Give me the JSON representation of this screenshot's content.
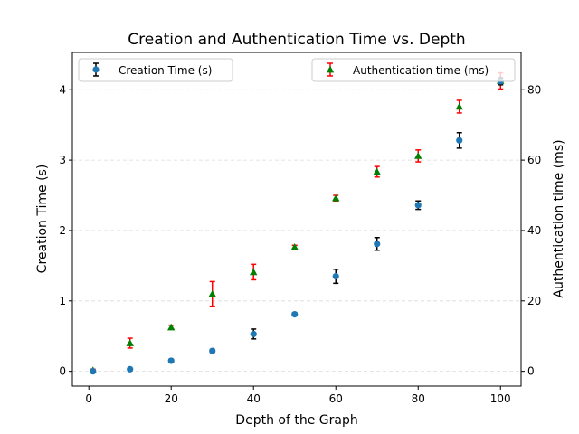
{
  "chart_data": {
    "type": "scatter",
    "title": "Creation and Authentication Time vs. Depth",
    "xlabel": "Depth of the Graph",
    "ylabel": "Creation Time (s)",
    "ylabel_right": "Authentication time (ms)",
    "xlim": [
      -4,
      105
    ],
    "ylim": [
      -0.21,
      4.53
    ],
    "ylim_right": [
      -4.2,
      90.6
    ],
    "xticks": [
      0,
      20,
      40,
      60,
      80,
      100
    ],
    "yticks": [
      0,
      1,
      2,
      3,
      4
    ],
    "yticks_right": [
      0,
      20,
      40,
      60,
      80
    ],
    "grid": "y-dashed",
    "series": [
      {
        "name": "Creation Time (s)",
        "axis": "left",
        "marker": "circle",
        "color": "#1f77b4",
        "error_color": "#000000",
        "legend_position": "upper-left",
        "x": [
          1,
          10,
          20,
          30,
          40,
          50,
          60,
          70,
          80,
          90,
          100
        ],
        "y": [
          0.0,
          0.03,
          0.15,
          0.29,
          0.53,
          0.81,
          1.35,
          1.81,
          2.36,
          3.28,
          4.12
        ],
        "err": [
          0.01,
          0.01,
          0.02,
          0.02,
          0.07,
          0.02,
          0.1,
          0.09,
          0.06,
          0.11,
          0.05
        ]
      },
      {
        "name": "Authentication time (ms)",
        "axis": "right",
        "marker": "triangle",
        "color": "#008000",
        "error_color": "#ff0000",
        "legend_position": "upper-right",
        "x": [
          1,
          10,
          20,
          30,
          40,
          50,
          60,
          70,
          80,
          90,
          100
        ],
        "y": [
          0.3,
          8.0,
          12.5,
          22.0,
          28.2,
          35.3,
          49.2,
          56.7,
          61.2,
          75.2,
          82.5
        ],
        "err": [
          0.3,
          1.4,
          0.6,
          3.5,
          2.2,
          0.5,
          0.8,
          1.5,
          1.7,
          1.8,
          2.3
        ]
      }
    ]
  }
}
